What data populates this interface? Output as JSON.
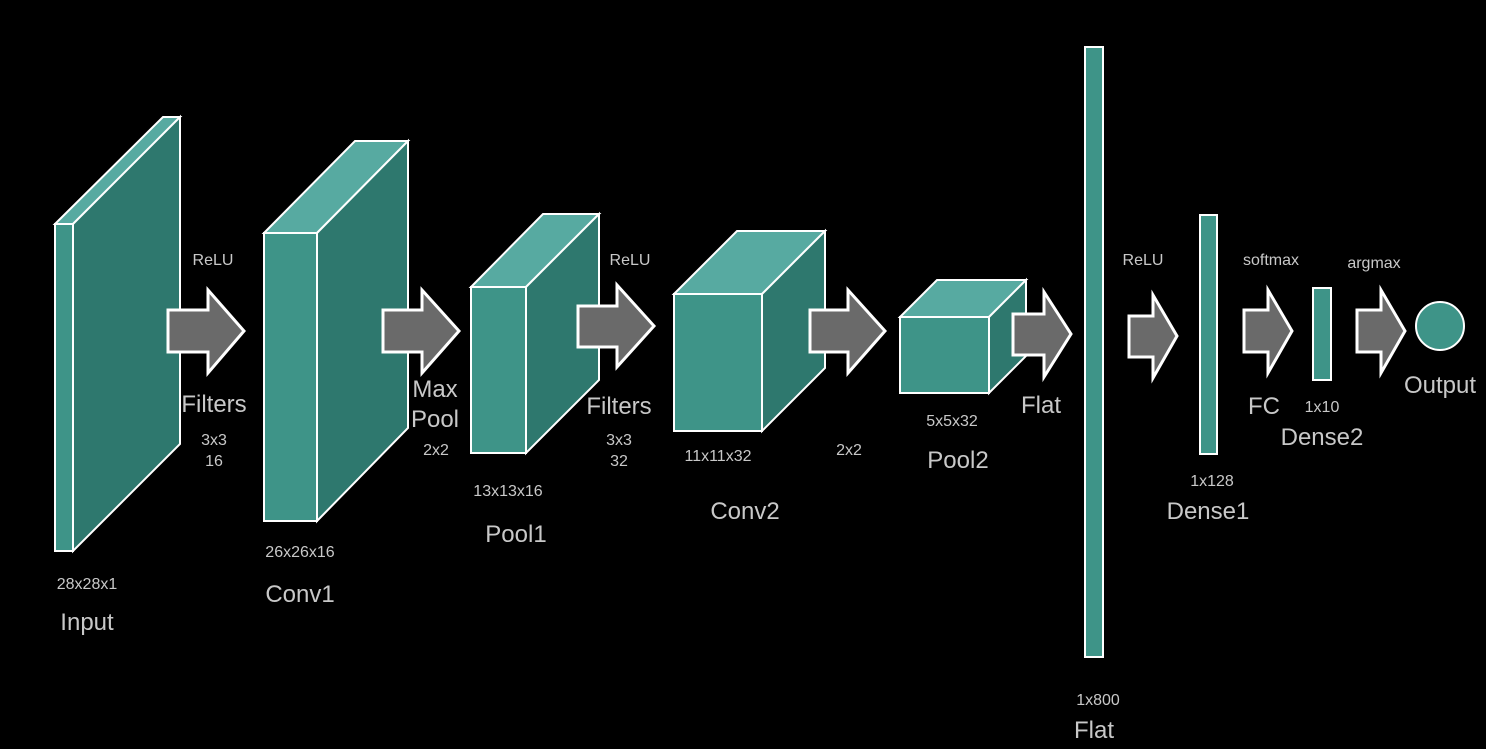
{
  "colors": {
    "background": "#000000",
    "box_front": "#3e9488",
    "box_top": "#57aaa1",
    "box_side": "#2e786e",
    "arrow": "#6a6a6a",
    "outline": "#ffffff",
    "text": "#c8c8c8"
  },
  "layers": {
    "input": {
      "name": "Input",
      "shape": "28x28x1"
    },
    "conv1": {
      "name": "Conv1",
      "shape": "26x26x16"
    },
    "pool1": {
      "name": "Pool1",
      "shape": "13x13x16"
    },
    "conv2": {
      "name": "Conv2",
      "shape": "11x11x32"
    },
    "pool2": {
      "name": "Pool2",
      "shape": "5x5x32"
    },
    "flat": {
      "name": "Flat",
      "shape": "1x800"
    },
    "dense1": {
      "name": "Dense1",
      "shape": "1x128"
    },
    "dense2": {
      "name": "Dense2",
      "shape": "1x10"
    },
    "output": {
      "name": "Output"
    }
  },
  "ops": {
    "op1": {
      "activation": "ReLU",
      "name": "Filters",
      "kernel": "3x3",
      "count": "16"
    },
    "op2": {
      "name_line1": "Max",
      "name_line2": "Pool",
      "kernel": "2x2"
    },
    "op3": {
      "activation": "ReLU",
      "name": "Filters",
      "kernel": "3x3",
      "count": "32"
    },
    "op4": {
      "kernel": "2x2"
    },
    "op5": {
      "name": "Flat"
    },
    "op6": {
      "activation": "ReLU"
    },
    "op7": {
      "activation": "softmax",
      "name": "FC"
    },
    "op8": {
      "activation": "argmax"
    }
  }
}
